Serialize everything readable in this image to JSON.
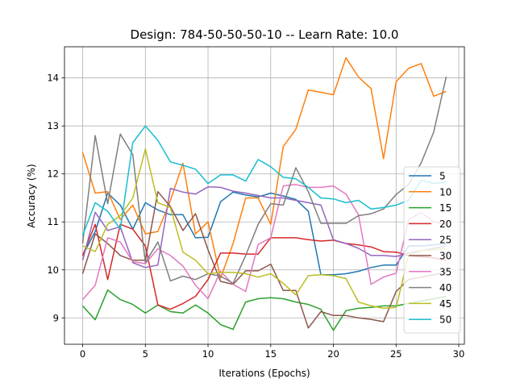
{
  "chart_data": {
    "type": "line",
    "title": "Design: 784-50-50-50-10 -- Learn Rate: 10.0",
    "xlabel": "Iterations (Epochs)",
    "ylabel": "Accuracy (%)",
    "xlim": [
      -1.45,
      30.45
    ],
    "ylim": [
      8.45,
      14.65
    ],
    "xticks": [
      0,
      5,
      10,
      15,
      20,
      25,
      30
    ],
    "yticks": [
      9,
      10,
      11,
      12,
      13,
      14
    ],
    "grid": true,
    "legend_position": "lower-right",
    "x": [
      0,
      1,
      2,
      3,
      4,
      5,
      6,
      7,
      8,
      9,
      10,
      11,
      12,
      13,
      14,
      15,
      16,
      17,
      18,
      19,
      20,
      21,
      22,
      23,
      24,
      25,
      26,
      27,
      28,
      29
    ],
    "series": [
      {
        "name": "5",
        "color": "#1f77b4",
        "values": [
          10.3,
          10.8,
          11.6,
          11.35,
          10.85,
          11.4,
          11.25,
          11.15,
          11.15,
          10.67,
          10.68,
          11.42,
          11.62,
          11.56,
          11.52,
          11.6,
          11.54,
          11.47,
          11.22,
          9.9,
          9.9,
          9.92,
          9.97,
          10.05,
          10.1,
          10.1,
          10.5,
          10.5,
          10.52,
          10.55
        ]
      },
      {
        "name": "10",
        "color": "#ff7f0e",
        "values": [
          12.45,
          11.6,
          11.63,
          11.05,
          11.35,
          10.75,
          10.8,
          11.45,
          12.22,
          10.75,
          11.0,
          9.83,
          10.55,
          11.5,
          11.5,
          10.95,
          12.57,
          12.93,
          13.75,
          13.7,
          13.65,
          14.42,
          14.02,
          13.78,
          12.32,
          13.92,
          14.2,
          14.3,
          13.62,
          13.72
        ]
      },
      {
        "name": "15",
        "color": "#2ca02c",
        "values": [
          9.25,
          8.96,
          9.58,
          9.38,
          9.28,
          9.1,
          9.27,
          9.13,
          9.1,
          9.27,
          9.1,
          8.86,
          8.76,
          9.33,
          9.4,
          9.42,
          9.4,
          9.33,
          9.28,
          9.18,
          8.74,
          9.15,
          9.2,
          9.22,
          9.25,
          9.25,
          9.3,
          9.35,
          9.4,
          9.45
        ]
      },
      {
        "name": "20",
        "color": "#d62728",
        "values": [
          10.3,
          10.95,
          9.8,
          10.95,
          10.85,
          10.5,
          9.27,
          9.18,
          9.3,
          9.45,
          9.8,
          10.35,
          10.35,
          10.33,
          10.33,
          10.67,
          10.67,
          10.67,
          10.63,
          10.6,
          10.62,
          10.55,
          10.52,
          10.48,
          10.38,
          10.37,
          10.3,
          10.27,
          10.25,
          10.2
        ]
      },
      {
        "name": "25",
        "color": "#9467bd",
        "values": [
          10.2,
          11.2,
          10.82,
          10.9,
          10.15,
          10.05,
          10.1,
          11.7,
          11.62,
          11.58,
          11.73,
          11.72,
          11.64,
          11.6,
          11.55,
          11.5,
          11.5,
          11.45,
          11.4,
          11.35,
          10.63,
          10.55,
          10.45,
          10.3,
          10.3,
          10.28,
          10.35,
          10.4,
          10.45,
          10.5
        ]
      },
      {
        "name": "30",
        "color": "#8c564b",
        "values": [
          9.92,
          10.75,
          10.55,
          10.3,
          10.2,
          10.2,
          11.63,
          11.32,
          10.82,
          11.17,
          10.42,
          9.76,
          9.7,
          9.98,
          9.98,
          10.12,
          9.57,
          9.57,
          8.79,
          9.13,
          9.05,
          9.05,
          9.0,
          8.97,
          8.92,
          9.55,
          9.8,
          9.85,
          9.9,
          9.95
        ]
      },
      {
        "name": "35",
        "color": "#e377c2",
        "values": [
          9.38,
          9.68,
          10.67,
          10.58,
          10.17,
          10.13,
          10.44,
          10.3,
          10.08,
          9.68,
          9.4,
          9.97,
          9.7,
          9.55,
          10.53,
          10.67,
          11.75,
          11.78,
          11.72,
          11.72,
          11.75,
          11.58,
          11.15,
          9.7,
          9.85,
          9.93,
          11.05,
          11.2,
          11.0,
          10.95
        ]
      },
      {
        "name": "40",
        "color": "#7f7f7f",
        "values": [
          10.55,
          12.8,
          11.38,
          12.83,
          12.4,
          10.15,
          10.58,
          9.77,
          9.87,
          9.8,
          9.92,
          9.87,
          9.72,
          10.3,
          10.95,
          11.38,
          11.35,
          12.13,
          11.63,
          10.97,
          10.97,
          10.97,
          11.13,
          11.17,
          11.27,
          11.57,
          11.78,
          12.23,
          12.87,
          14.03
        ]
      },
      {
        "name": "45",
        "color": "#bcbd22",
        "values": [
          10.5,
          10.38,
          10.95,
          11.13,
          11.5,
          12.52,
          11.4,
          11.3,
          10.37,
          10.2,
          9.92,
          9.95,
          9.95,
          9.92,
          9.85,
          9.92,
          9.72,
          9.48,
          9.88,
          9.9,
          9.88,
          9.82,
          9.33,
          9.25,
          9.2,
          9.22,
          10.3,
          10.4,
          10.42,
          10.45
        ]
      },
      {
        "name": "50",
        "color": "#17becf",
        "values": [
          10.72,
          11.4,
          11.22,
          10.85,
          12.65,
          13.0,
          12.7,
          12.25,
          12.18,
          12.1,
          11.8,
          11.98,
          11.98,
          11.85,
          12.3,
          12.15,
          11.93,
          11.9,
          11.72,
          11.5,
          11.48,
          11.4,
          11.45,
          11.27,
          11.3,
          11.35,
          11.45,
          11.87,
          11.8,
          11.83
        ]
      }
    ]
  }
}
